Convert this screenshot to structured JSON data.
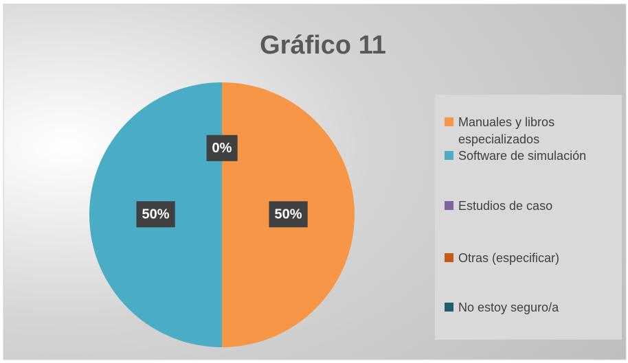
{
  "chart_data": {
    "type": "pie",
    "title": "Gráfico 11",
    "categories": [
      "Manuales y libros especializados",
      "Software de simulación",
      "Estudios de caso",
      "Otras (especificar)",
      "No estoy seguro/a"
    ],
    "values": [
      50,
      50,
      0,
      0,
      0
    ],
    "value_labels": [
      "50%",
      "50%",
      "0%",
      null,
      null
    ],
    "colors": [
      "#f79646",
      "#4bacc6",
      "#8064a2",
      "#c55a11",
      "#215f6e"
    ],
    "legend": "right"
  }
}
